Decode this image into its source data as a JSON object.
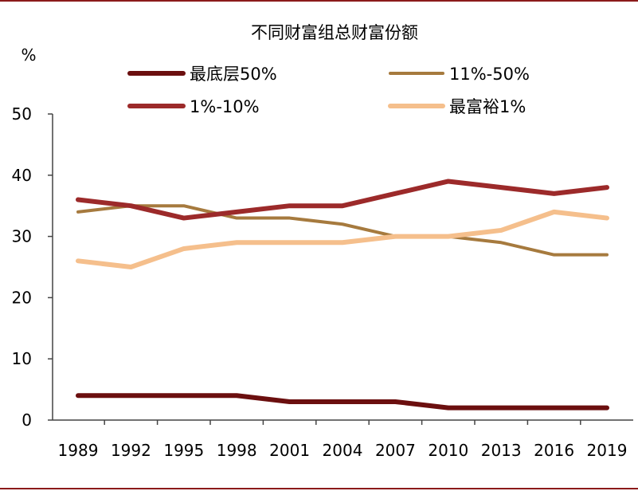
{
  "chart_data": {
    "type": "line",
    "title": "不同财富组总财富份额",
    "ylabel": "%",
    "xlabel": "",
    "ylim": [
      0,
      50
    ],
    "yticks": [
      0,
      10,
      20,
      30,
      40,
      50
    ],
    "categories": [
      "1989",
      "1992",
      "1995",
      "1998",
      "2001",
      "2004",
      "2007",
      "2010",
      "2013",
      "2016",
      "2019"
    ],
    "legend_position": "top",
    "grid": false,
    "series": [
      {
        "name": "最底层50%",
        "color": "#6b0f0f",
        "values": [
          4,
          4,
          4,
          4,
          3,
          3,
          3,
          2,
          2,
          2,
          2
        ]
      },
      {
        "name": "11%-50%",
        "color": "#a67a3e",
        "values": [
          34,
          35,
          35,
          33,
          33,
          32,
          30,
          30,
          29,
          27,
          27
        ]
      },
      {
        "name": "1%-10%",
        "color": "#9c2a2a",
        "values": [
          36,
          35,
          33,
          34,
          35,
          35,
          37,
          39,
          38,
          37,
          38
        ]
      },
      {
        "name": "最富裕1%",
        "color": "#f5bf8c",
        "values": [
          26,
          25,
          28,
          29,
          29,
          29,
          30,
          30,
          31,
          34,
          33
        ]
      }
    ]
  }
}
